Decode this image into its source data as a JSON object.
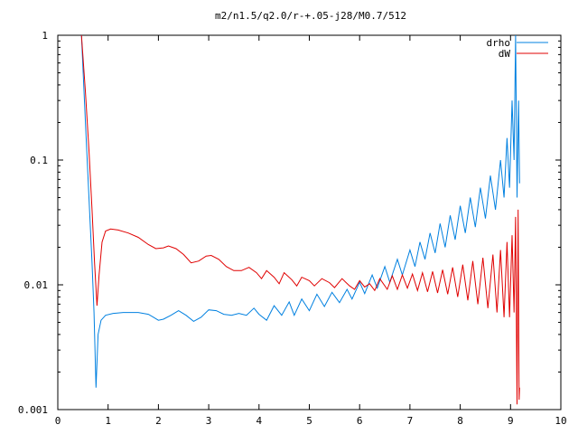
{
  "chart_data": {
    "type": "line",
    "title": "m2/n1.5/q2.0/r-+.05-j28/M0.7/512",
    "xlabel": "",
    "ylabel": "",
    "xlim": [
      0,
      10
    ],
    "ylim": [
      0.001,
      1
    ],
    "yscale": "log",
    "x_ticks": [
      0,
      1,
      2,
      3,
      4,
      5,
      6,
      7,
      8,
      9,
      10
    ],
    "x_tick_labels": [
      "0",
      "1",
      "2",
      "3",
      "4",
      "5",
      "6",
      "7",
      "8",
      "9",
      "10"
    ],
    "y_ticks": [
      0.001,
      0.01,
      0.1,
      1
    ],
    "y_tick_labels": [
      "0.001",
      "0.01",
      "0.1",
      "1"
    ],
    "grid": false,
    "legend_position": "top-right",
    "series": [
      {
        "name": "drho",
        "color": "#0080e0",
        "points": [
          [
            0.47,
            1.0
          ],
          [
            0.55,
            0.2
          ],
          [
            0.62,
            0.05
          ],
          [
            0.68,
            0.015
          ],
          [
            0.72,
            0.006
          ],
          [
            0.76,
            0.0015
          ],
          [
            0.8,
            0.004
          ],
          [
            0.86,
            0.0052
          ],
          [
            0.95,
            0.0057
          ],
          [
            1.1,
            0.0059
          ],
          [
            1.3,
            0.006
          ],
          [
            1.6,
            0.006
          ],
          [
            1.8,
            0.0058
          ],
          [
            1.9,
            0.0055
          ],
          [
            2.0,
            0.0052
          ],
          [
            2.1,
            0.0053
          ],
          [
            2.25,
            0.0057
          ],
          [
            2.4,
            0.0062
          ],
          [
            2.55,
            0.0057
          ],
          [
            2.7,
            0.0051
          ],
          [
            2.85,
            0.0055
          ],
          [
            3.0,
            0.0063
          ],
          [
            3.15,
            0.0062
          ],
          [
            3.3,
            0.0058
          ],
          [
            3.45,
            0.0057
          ],
          [
            3.6,
            0.0059
          ],
          [
            3.75,
            0.0057
          ],
          [
            3.9,
            0.0065
          ],
          [
            4.0,
            0.0058
          ],
          [
            4.15,
            0.0052
          ],
          [
            4.3,
            0.0068
          ],
          [
            4.45,
            0.0057
          ],
          [
            4.6,
            0.0073
          ],
          [
            4.7,
            0.0057
          ],
          [
            4.85,
            0.0077
          ],
          [
            5.0,
            0.0062
          ],
          [
            5.15,
            0.0084
          ],
          [
            5.3,
            0.0067
          ],
          [
            5.45,
            0.0087
          ],
          [
            5.6,
            0.0072
          ],
          [
            5.75,
            0.0092
          ],
          [
            5.85,
            0.0077
          ],
          [
            6.0,
            0.0105
          ],
          [
            6.1,
            0.0085
          ],
          [
            6.25,
            0.012
          ],
          [
            6.35,
            0.0094
          ],
          [
            6.5,
            0.014
          ],
          [
            6.6,
            0.0105
          ],
          [
            6.75,
            0.016
          ],
          [
            6.85,
            0.012
          ],
          [
            7.0,
            0.019
          ],
          [
            7.1,
            0.014
          ],
          [
            7.2,
            0.022
          ],
          [
            7.3,
            0.016
          ],
          [
            7.4,
            0.026
          ],
          [
            7.5,
            0.018
          ],
          [
            7.6,
            0.031
          ],
          [
            7.7,
            0.02
          ],
          [
            7.8,
            0.036
          ],
          [
            7.9,
            0.023
          ],
          [
            8.0,
            0.043
          ],
          [
            8.1,
            0.026
          ],
          [
            8.2,
            0.05
          ],
          [
            8.3,
            0.029
          ],
          [
            8.4,
            0.06
          ],
          [
            8.5,
            0.034
          ],
          [
            8.6,
            0.075
          ],
          [
            8.7,
            0.04
          ],
          [
            8.8,
            0.1
          ],
          [
            8.87,
            0.05
          ],
          [
            8.93,
            0.15
          ],
          [
            8.98,
            0.06
          ],
          [
            9.03,
            0.3
          ],
          [
            9.07,
            0.1
          ],
          [
            9.1,
            1.0
          ],
          [
            9.13,
            0.05
          ],
          [
            9.16,
            0.3
          ],
          [
            9.18,
            0.065
          ]
        ]
      },
      {
        "name": "dW",
        "color": "#e00000",
        "points": [
          [
            0.47,
            1.0
          ],
          [
            0.55,
            0.35
          ],
          [
            0.62,
            0.12
          ],
          [
            0.68,
            0.04
          ],
          [
            0.73,
            0.015
          ],
          [
            0.78,
            0.0068
          ],
          [
            0.82,
            0.012
          ],
          [
            0.88,
            0.022
          ],
          [
            0.95,
            0.027
          ],
          [
            1.05,
            0.028
          ],
          [
            1.2,
            0.0275
          ],
          [
            1.4,
            0.026
          ],
          [
            1.6,
            0.024
          ],
          [
            1.8,
            0.021
          ],
          [
            1.95,
            0.0195
          ],
          [
            2.1,
            0.0198
          ],
          [
            2.2,
            0.0205
          ],
          [
            2.35,
            0.0195
          ],
          [
            2.5,
            0.0175
          ],
          [
            2.65,
            0.015
          ],
          [
            2.8,
            0.0155
          ],
          [
            2.95,
            0.017
          ],
          [
            3.05,
            0.0172
          ],
          [
            3.2,
            0.016
          ],
          [
            3.35,
            0.014
          ],
          [
            3.5,
            0.013
          ],
          [
            3.65,
            0.013
          ],
          [
            3.8,
            0.0138
          ],
          [
            3.95,
            0.0125
          ],
          [
            4.05,
            0.0112
          ],
          [
            4.15,
            0.013
          ],
          [
            4.3,
            0.0115
          ],
          [
            4.4,
            0.0102
          ],
          [
            4.5,
            0.0125
          ],
          [
            4.65,
            0.011
          ],
          [
            4.75,
            0.0098
          ],
          [
            4.85,
            0.0115
          ],
          [
            5.0,
            0.0108
          ],
          [
            5.1,
            0.0098
          ],
          [
            5.25,
            0.0112
          ],
          [
            5.4,
            0.0104
          ],
          [
            5.5,
            0.0095
          ],
          [
            5.65,
            0.0112
          ],
          [
            5.8,
            0.0098
          ],
          [
            5.9,
            0.0092
          ],
          [
            6.0,
            0.0108
          ],
          [
            6.1,
            0.0096
          ],
          [
            6.2,
            0.0102
          ],
          [
            6.3,
            0.009
          ],
          [
            6.4,
            0.0112
          ],
          [
            6.55,
            0.0092
          ],
          [
            6.65,
            0.0118
          ],
          [
            6.75,
            0.0092
          ],
          [
            6.85,
            0.012
          ],
          [
            6.95,
            0.0094
          ],
          [
            7.05,
            0.0122
          ],
          [
            7.15,
            0.009
          ],
          [
            7.25,
            0.0125
          ],
          [
            7.35,
            0.0088
          ],
          [
            7.45,
            0.0128
          ],
          [
            7.55,
            0.0086
          ],
          [
            7.65,
            0.0132
          ],
          [
            7.75,
            0.0084
          ],
          [
            7.85,
            0.0138
          ],
          [
            7.95,
            0.008
          ],
          [
            8.05,
            0.0145
          ],
          [
            8.15,
            0.0075
          ],
          [
            8.25,
            0.0155
          ],
          [
            8.35,
            0.007
          ],
          [
            8.45,
            0.0165
          ],
          [
            8.55,
            0.0065
          ],
          [
            8.65,
            0.0175
          ],
          [
            8.73,
            0.006
          ],
          [
            8.8,
            0.019
          ],
          [
            8.87,
            0.0055
          ],
          [
            8.93,
            0.022
          ],
          [
            8.98,
            0.0055
          ],
          [
            9.03,
            0.025
          ],
          [
            9.07,
            0.006
          ],
          [
            9.1,
            0.035
          ],
          [
            9.13,
            0.0011
          ],
          [
            9.15,
            0.04
          ],
          [
            9.17,
            0.0012
          ],
          [
            9.18,
            0.0015
          ]
        ]
      }
    ]
  }
}
